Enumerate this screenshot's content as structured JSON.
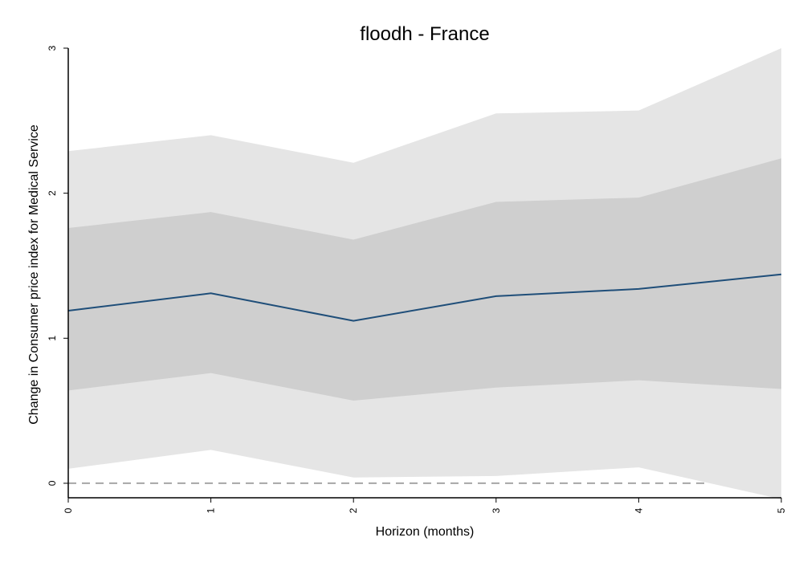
{
  "chart_data": {
    "type": "line",
    "title": "floodh - France",
    "xlabel": "Horizon (months)",
    "ylabel": "Change in Consumer price index for  Medical Service",
    "x": [
      0,
      1,
      2,
      3,
      4,
      5
    ],
    "xlim": [
      0,
      5
    ],
    "ylim": [
      -0.1,
      3
    ],
    "x_ticks": [
      "0",
      "1",
      "2",
      "3",
      "4",
      "5"
    ],
    "y_ticks": [
      "0",
      "1",
      "2",
      "3"
    ],
    "series": [
      {
        "role": "point_estimate",
        "values": [
          1.19,
          1.31,
          1.12,
          1.29,
          1.34,
          1.44
        ]
      },
      {
        "role": "inner_confidence_band",
        "lower": [
          0.64,
          0.76,
          0.57,
          0.66,
          0.71,
          0.65
        ],
        "upper": [
          1.76,
          1.87,
          1.68,
          1.94,
          1.97,
          2.24
        ]
      },
      {
        "role": "outer_confidence_band",
        "lower": [
          0.1,
          0.23,
          0.04,
          0.05,
          0.11,
          -0.11
        ],
        "upper": [
          2.29,
          2.4,
          2.21,
          2.55,
          2.57,
          3.0
        ]
      }
    ],
    "reference_line": {
      "y": 0,
      "style": "dashed"
    },
    "grid": false,
    "legend": "none",
    "colors": {
      "line": "#1f4e79",
      "inner_band": "#cfcfcf",
      "outer_band": "#e5e5e5",
      "reference_line": "#a6a6a6",
      "axis": "#000000"
    }
  }
}
